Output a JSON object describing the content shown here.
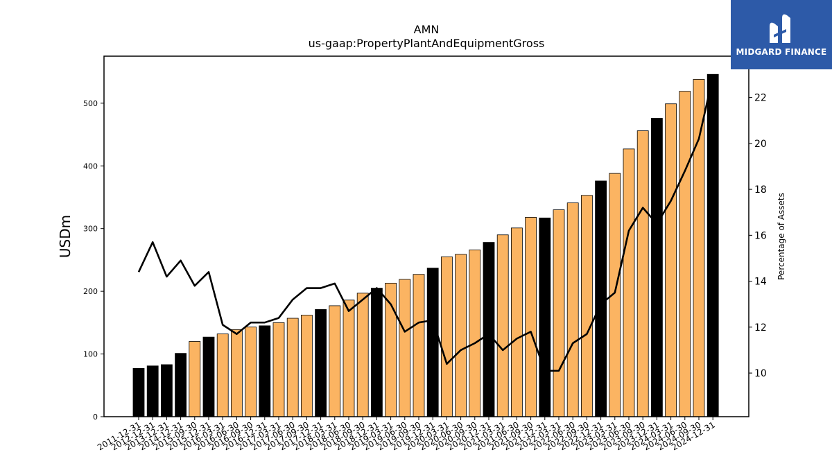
{
  "chart_data": {
    "type": "bar",
    "title": "AMN",
    "subtitle": "us-gaap:PropertyPlantAndEquipmentGross",
    "ylabel": "USDm",
    "y2label": "Percentage of Assets",
    "ylim": [
      0,
      575
    ],
    "y2lim": [
      8.1,
      23.8
    ],
    "yticks": [
      0,
      100,
      200,
      300,
      400,
      500
    ],
    "y2ticks": [
      10,
      12,
      14,
      16,
      18,
      20,
      22
    ],
    "categories": [
      "2011-12-31",
      "2012-12-31",
      "2013-12-31",
      "2014-12-31",
      "2015-09-30",
      "2015-12-31",
      "2016-03-31",
      "2016-06-30",
      "2016-09-30",
      "2016-12-31",
      "2017-03-31",
      "2017-06-30",
      "2017-09-30",
      "2017-12-31",
      "2018-03-31",
      "2018-06-30",
      "2018-09-30",
      "2018-12-31",
      "2019-03-31",
      "2019-06-30",
      "2019-09-30",
      "2019-12-31",
      "2020-03-31",
      "2020-06-30",
      "2020-09-30",
      "2020-12-31",
      "2021-03-31",
      "2021-06-30",
      "2021-09-30",
      "2021-12-31",
      "2022-03-31",
      "2022-06-30",
      "2022-09-30",
      "2022-12-31",
      "2023-03-31",
      "2023-06-30",
      "2023-09-30",
      "2023-12-31",
      "2024-03-31",
      "2024-06-30",
      "2024-09-30",
      "2024-12-31"
    ],
    "series": [
      {
        "type": "bar",
        "values": [
          77,
          81,
          83,
          101,
          120,
          127,
          132,
          139,
          143,
          145,
          150,
          157,
          162,
          171,
          177,
          186,
          197,
          205,
          213,
          219,
          227,
          237,
          255,
          259,
          266,
          278,
          290,
          301,
          318,
          317,
          330,
          341,
          353,
          376,
          388,
          427,
          456,
          476,
          499,
          519,
          538,
          546
        ],
        "annual": [
          true,
          true,
          true,
          true,
          false,
          true,
          false,
          false,
          false,
          true,
          false,
          false,
          false,
          true,
          false,
          false,
          false,
          true,
          false,
          false,
          false,
          true,
          false,
          false,
          false,
          true,
          false,
          false,
          false,
          true,
          false,
          false,
          false,
          true,
          false,
          false,
          false,
          true,
          false,
          false,
          false,
          true
        ]
      },
      {
        "type": "line",
        "axis": "right",
        "values": [
          14.4,
          15.7,
          14.2,
          14.9,
          13.8,
          14.4,
          12.1,
          11.7,
          12.2,
          12.2,
          12.4,
          13.2,
          13.7,
          13.7,
          13.9,
          12.7,
          13.2,
          13.7,
          13.0,
          11.8,
          12.2,
          12.3,
          10.4,
          11.0,
          11.3,
          11.7,
          11.0,
          11.5,
          11.8,
          10.1,
          10.1,
          11.3,
          11.7,
          13.0,
          13.5,
          16.2,
          17.2,
          16.5,
          17.5,
          18.8,
          20.2,
          22.9
        ]
      }
    ],
    "colors": {
      "annual": "#000000",
      "quarterly": "#fbb462",
      "line": "#000000"
    }
  },
  "logo": {
    "text": "MIDGARD FINANCE",
    "color": "#2d5aa8"
  }
}
